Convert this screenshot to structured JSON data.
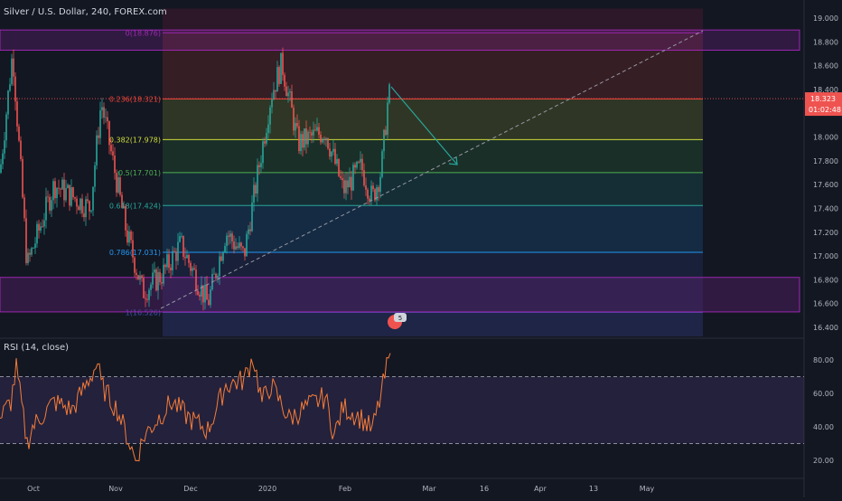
{
  "header": {
    "symbol_title": "Silver / U.S. Dollar, 240, FOREX.com"
  },
  "rsi": {
    "title": "RSI (14, close)",
    "upper": 70,
    "lower": 30
  },
  "colors": {
    "background": "#131722",
    "candle_up": "#26a69a",
    "candle_down": "#ef5350",
    "rsi_line": "#f57c3a",
    "accent_price_tag": "#ef5350"
  },
  "price_axis": {
    "ticks": [
      "19.000",
      "18.800",
      "18.600",
      "18.400",
      "18.200",
      "18.000",
      "17.800",
      "17.600",
      "17.400",
      "17.200",
      "17.000",
      "16.800",
      "16.600",
      "16.400"
    ],
    "last_price": "18.323",
    "countdown": "01:02:48"
  },
  "rsi_axis": {
    "ticks": [
      "80.00",
      "60.00",
      "40.00",
      "20.00"
    ]
  },
  "time_axis": {
    "ticks": [
      "Oct",
      "Nov",
      "Dec",
      "2020",
      "Feb",
      "Mar",
      "16",
      "Apr",
      "13",
      "May"
    ]
  },
  "fib_levels": [
    {
      "label": "0(18.876)",
      "value": 18.876,
      "color": "#9c27b0"
    },
    {
      "label": "0.236(18.321)",
      "value": 18.321,
      "color": "#f44336"
    },
    {
      "label": "0.382(17.978)",
      "value": 17.978,
      "color": "#cddc39"
    },
    {
      "label": "0.5(17.701)",
      "value": 17.701,
      "color": "#4caf50"
    },
    {
      "label": "0.618(17.424)",
      "value": 17.424,
      "color": "#26a69a"
    },
    {
      "label": "0.786(17.031)",
      "value": 17.031,
      "color": "#2196f3"
    },
    {
      "label": "1(16.526)",
      "value": 16.526,
      "color": "#3f51b5"
    }
  ],
  "zones": [
    {
      "name": "resistance",
      "from": 18.73,
      "to": 18.9,
      "color": "#9c27b0"
    },
    {
      "name": "support",
      "from": 16.53,
      "to": 16.82,
      "color": "#9c27b0"
    }
  ],
  "badge": {
    "text": "5"
  }
}
